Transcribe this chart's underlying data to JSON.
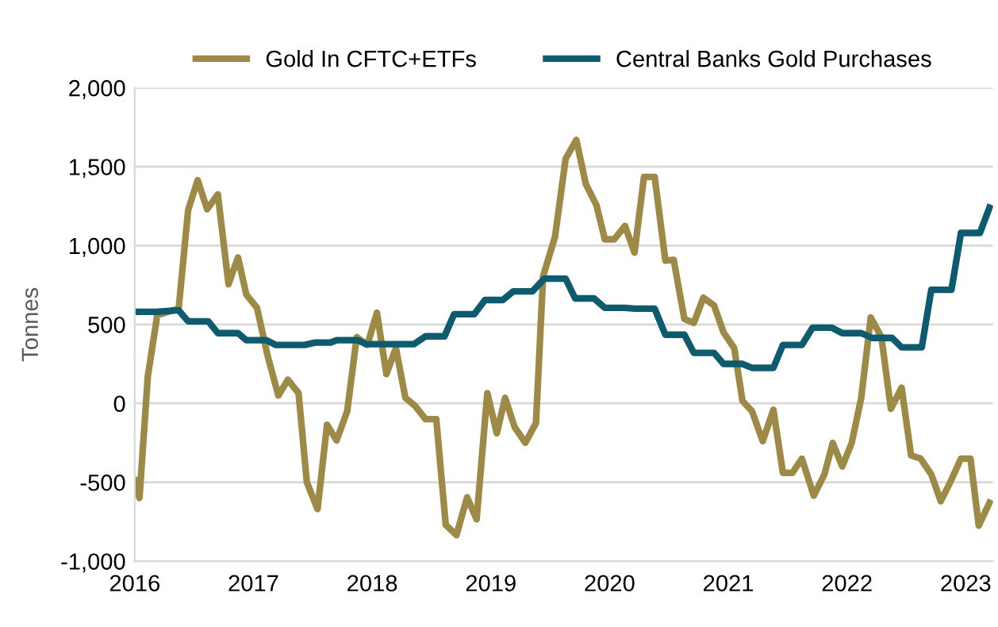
{
  "chart_data": {
    "type": "line",
    "ylabel": "Tonnes",
    "xlim": [
      2016,
      2023.23
    ],
    "xticks": [
      2016,
      2017,
      2018,
      2019,
      2020,
      2021,
      2022,
      2023
    ],
    "ylim": [
      -1000,
      2000
    ],
    "yticks": [
      {
        "value": -1000,
        "label": "-1,000"
      },
      {
        "value": -500,
        "label": "-500"
      },
      0,
      500,
      {
        "value": 1000,
        "label": "1,000"
      },
      {
        "value": 1500,
        "label": "1,500"
      },
      {
        "value": 2000,
        "label": "2,000"
      }
    ],
    "grid": "y",
    "legend": "top",
    "marker": "none",
    "line_style": "solid",
    "series": [
      {
        "name": "Gold In CFTC+ETFs",
        "color": "#9e8a47",
        "x": [
          2016.0,
          2016.04,
          2016.11,
          2016.19,
          2016.37,
          2016.45,
          2016.53,
          2016.61,
          2016.7,
          2016.79,
          2016.87,
          2016.94,
          2017.03,
          2017.12,
          2017.21,
          2017.29,
          2017.38,
          2017.45,
          2017.54,
          2017.62,
          2017.7,
          2017.79,
          2017.87,
          2017.96,
          2018.04,
          2018.12,
          2018.2,
          2018.28,
          2018.36,
          2018.45,
          2018.54,
          2018.62,
          2018.71,
          2018.8,
          2018.88,
          2018.97,
          2019.05,
          2019.12,
          2019.2,
          2019.29,
          2019.38,
          2019.44,
          2019.54,
          2019.63,
          2019.72,
          2019.8,
          2019.89,
          2019.96,
          2020.04,
          2020.13,
          2020.21,
          2020.29,
          2020.38,
          2020.47,
          2020.54,
          2020.63,
          2020.71,
          2020.79,
          2020.88,
          2020.96,
          2021.05,
          2021.12,
          2021.2,
          2021.29,
          2021.38,
          2021.46,
          2021.54,
          2021.62,
          2021.72,
          2021.81,
          2021.88,
          2021.96,
          2022.04,
          2022.12,
          2022.2,
          2022.29,
          2022.37,
          2022.46,
          2022.54,
          2022.62,
          2022.71,
          2022.79,
          2022.87,
          2022.96,
          2023.04,
          2023.11,
          2023.2
        ],
        "values": [
          -490,
          -600,
          170,
          560,
          600,
          1225,
          1415,
          1230,
          1325,
          755,
          925,
          690,
          605,
          300,
          50,
          150,
          65,
          -500,
          -670,
          -135,
          -235,
          -50,
          420,
          370,
          575,
          185,
          350,
          35,
          -15,
          -100,
          -100,
          -770,
          -835,
          -595,
          -735,
          65,
          -190,
          35,
          -150,
          -250,
          -125,
          805,
          1055,
          1550,
          1670,
          1390,
          1255,
          1040,
          1040,
          1125,
          955,
          1435,
          1435,
          905,
          910,
          535,
          510,
          670,
          620,
          450,
          350,
          15,
          -50,
          -240,
          -40,
          -440,
          -440,
          -350,
          -585,
          -450,
          -250,
          -400,
          -250,
          35,
          545,
          420,
          -35,
          100,
          -330,
          -350,
          -450,
          -620,
          -500,
          -350,
          -350,
          -775,
          -630
        ]
      },
      {
        "name": "Central Banks Gold Purchases",
        "color": "#0e5a6e",
        "x": [
          2016.0,
          2016.18,
          2016.37,
          2016.45,
          2016.62,
          2016.7,
          2016.87,
          2016.94,
          2017.11,
          2017.19,
          2017.43,
          2017.52,
          2017.65,
          2017.7,
          2017.88,
          2017.95,
          2018.35,
          2018.45,
          2018.61,
          2018.69,
          2018.86,
          2018.95,
          2019.1,
          2019.19,
          2019.35,
          2019.45,
          2019.63,
          2019.71,
          2019.87,
          2019.96,
          2020.13,
          2020.21,
          2020.38,
          2020.47,
          2020.63,
          2020.71,
          2020.88,
          2020.96,
          2021.12,
          2021.2,
          2021.38,
          2021.46,
          2021.62,
          2021.71,
          2021.87,
          2021.96,
          2022.12,
          2022.21,
          2022.38,
          2022.46,
          2022.63,
          2022.71,
          2022.88,
          2022.96,
          2023.12,
          2023.2
        ],
        "values": [
          580,
          580,
          590,
          520,
          520,
          445,
          445,
          400,
          400,
          370,
          370,
          385,
          385,
          400,
          400,
          375,
          375,
          425,
          425,
          565,
          565,
          655,
          655,
          710,
          710,
          790,
          790,
          665,
          665,
          605,
          605,
          600,
          600,
          435,
          435,
          320,
          320,
          250,
          250,
          225,
          225,
          370,
          370,
          480,
          480,
          445,
          445,
          415,
          415,
          355,
          355,
          720,
          720,
          1080,
          1080,
          1240
        ]
      }
    ]
  }
}
